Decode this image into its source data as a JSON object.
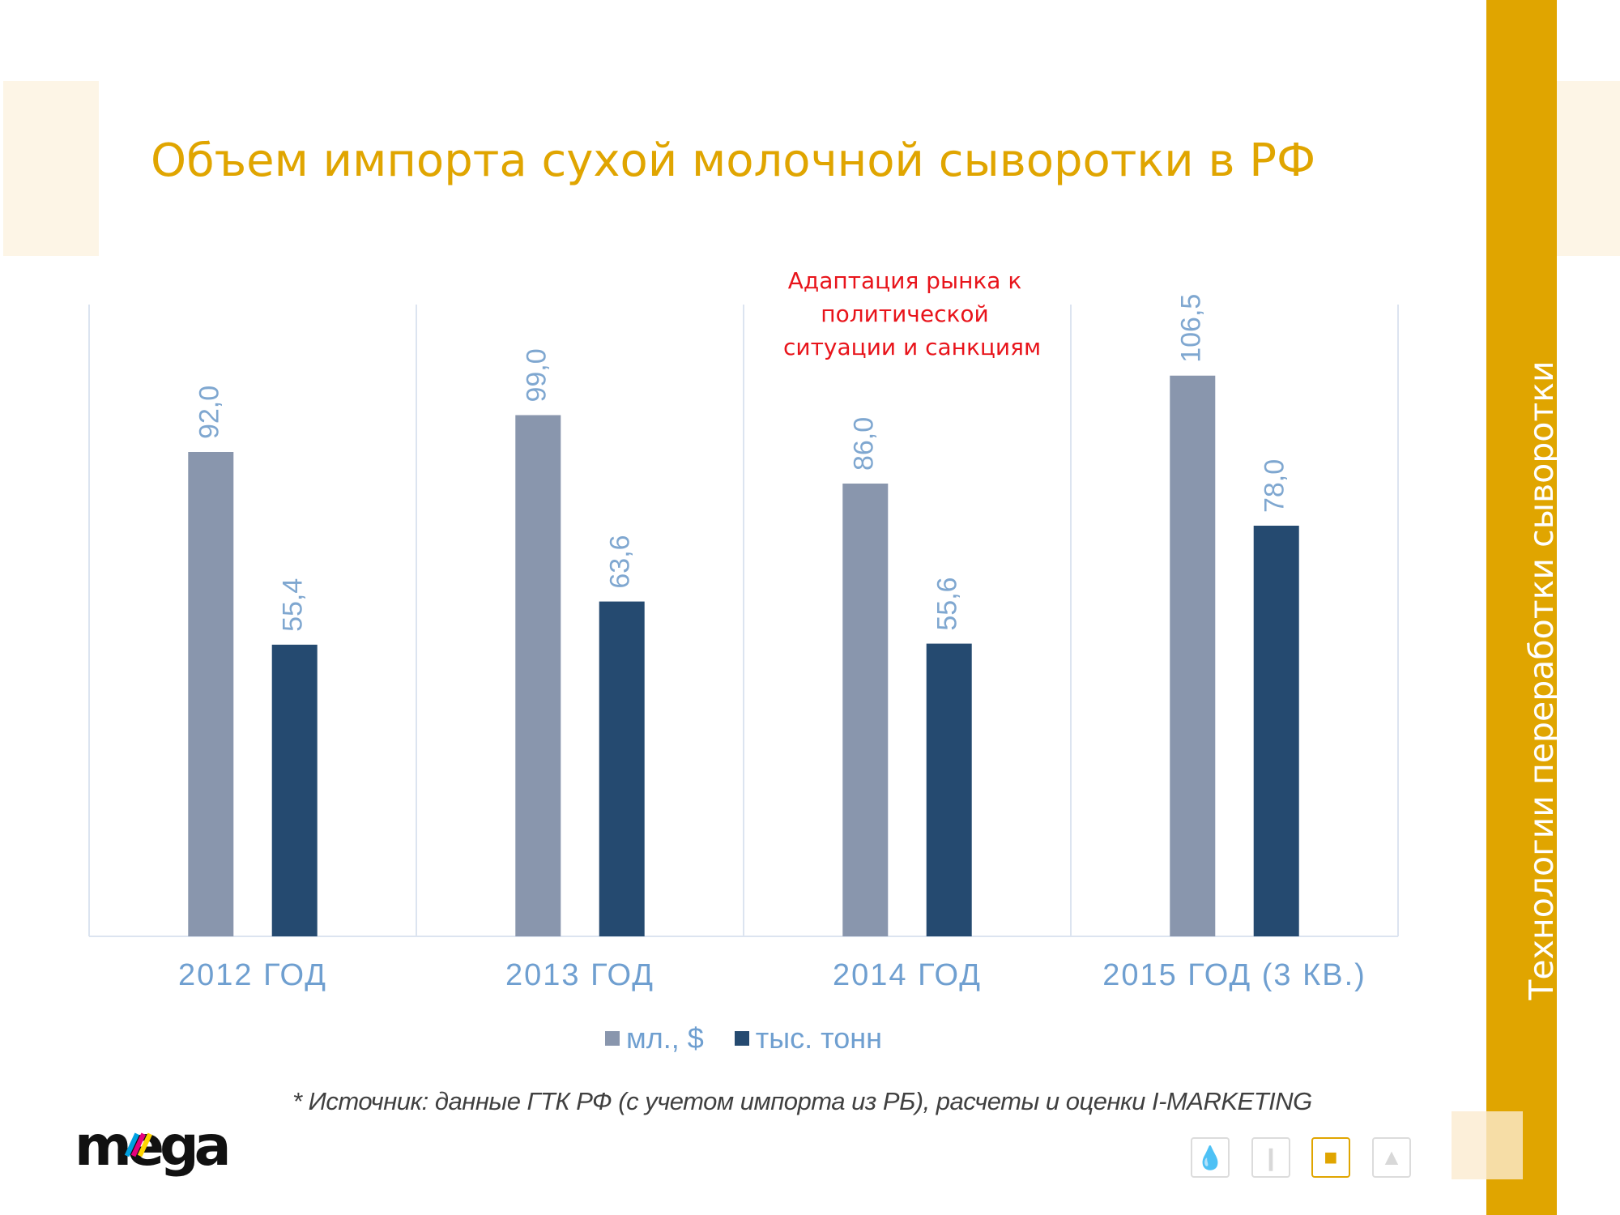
{
  "title": "Объем импорта сухой молочной сыворотки в РФ",
  "side_text": "Технологии переработки сыворотки",
  "annotation": [
    "Адаптация рынка к",
    "политической",
    "ситуации  и санкциям"
  ],
  "source": "* Источник: данные ГТК РФ (с учетом импорта из РБ), расчеты и оценки I-MARKETING",
  "logo_text": "mega",
  "colors": {
    "accent": "#E0A500",
    "series1": "#8996AD",
    "series2": "#254A70",
    "labels": "#6F9FD0",
    "annotation": "#E8141B"
  },
  "nav_icons": [
    {
      "name": "drops-icon",
      "active": false
    },
    {
      "name": "bottles-icon",
      "active": false
    },
    {
      "name": "milk-icon",
      "active": true
    },
    {
      "name": "drop-stand-icon",
      "active": false
    }
  ],
  "chart_data": {
    "type": "bar",
    "categories": [
      "2012 ГОД",
      "2013 ГОД",
      "2014 ГОД",
      "2015 ГОД (3 КВ.)"
    ],
    "series": [
      {
        "name": "мл., $",
        "values": [
          92.0,
          99.0,
          86.0,
          106.5
        ],
        "labels": [
          "92,0",
          "99,0",
          "86,0",
          "106,5"
        ],
        "color": "#8996AD"
      },
      {
        "name": "тыс. тонн",
        "values": [
          55.4,
          63.6,
          55.6,
          78.0
        ],
        "labels": [
          "55,4",
          "63,6",
          "55,6",
          "78,0"
        ],
        "color": "#254A70"
      }
    ],
    "ylim": [
      0,
      120
    ],
    "grid": false,
    "legend": "bottom",
    "data_labels": "rotated-vertical"
  }
}
